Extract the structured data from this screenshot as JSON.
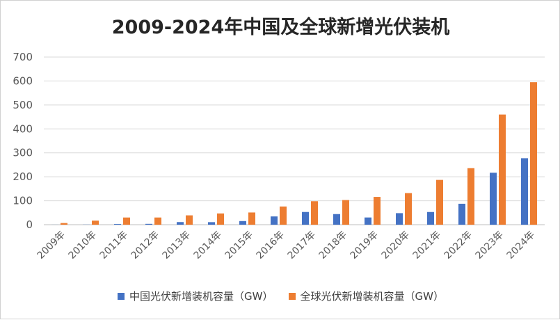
{
  "chart_data": {
    "type": "bar",
    "title": "2009-2024年中国及全球新增光伏装机",
    "categories": [
      "2009年",
      "2010年",
      "2011年",
      "2012年",
      "2013年",
      "2014年",
      "2015年",
      "2016年",
      "2017年",
      "2018年",
      "2019年",
      "2020年",
      "2021年",
      "2022年",
      "2023年",
      "2024年"
    ],
    "series": [
      {
        "name": "中国光伏新增装机容量（GW）",
        "color": "#4472C4",
        "values": [
          0.2,
          0.5,
          2.7,
          3.5,
          10.9,
          10.6,
          15.1,
          34.5,
          53.1,
          44.3,
          30.1,
          48.2,
          53.0,
          87.4,
          216.9,
          277.6
        ]
      },
      {
        "name": "全球光伏新增装机容量（GW）",
        "color": "#ED7D31",
        "values": [
          7,
          17,
          30,
          30,
          39,
          47,
          51,
          76,
          98,
          103,
          116,
          132,
          187,
          236,
          460,
          595
        ]
      }
    ],
    "ylim": [
      0,
      700
    ],
    "yticks": [
      0,
      100,
      200,
      300,
      400,
      500,
      600,
      700
    ],
    "grid": true,
    "legend_position": "bottom"
  }
}
